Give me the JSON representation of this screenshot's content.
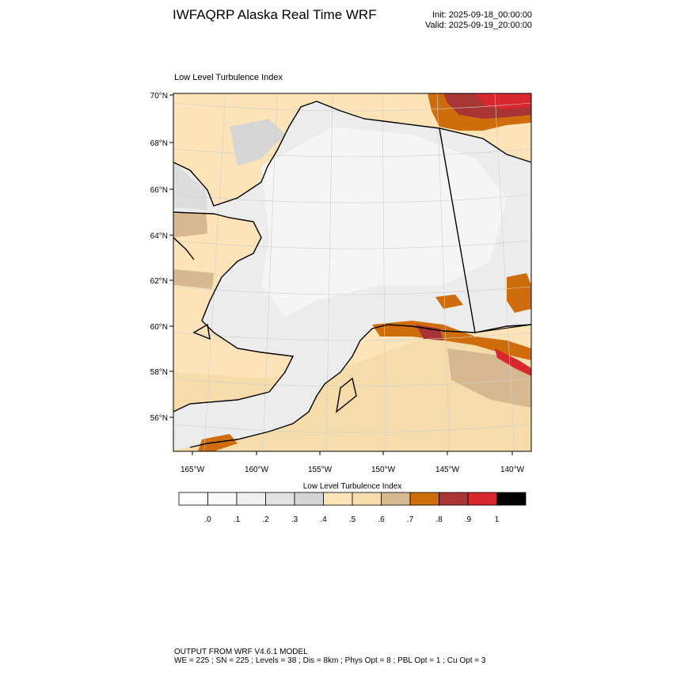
{
  "header": {
    "title": "IWFAQRP Alaska Real Time WRF",
    "init": "Init: 2025-09-18_00:00:00",
    "valid": "Valid: 2025-09-19_20:00:00"
  },
  "map": {
    "subtitle": "Low Level Turbulence Index",
    "lat_labels": [
      "70°N",
      "68°N",
      "66°N",
      "64°N",
      "62°N",
      "60°N",
      "58°N",
      "56°N"
    ],
    "lon_labels": [
      "165°W",
      "160°W",
      "155°W",
      "150°W",
      "145°W",
      "140°W"
    ]
  },
  "colorbar": {
    "title": "Low Level Turbulence Index",
    "colors": [
      "#ffffff",
      "#f9f9f9",
      "#efefef",
      "#e2e2e2",
      "#d4d4d4",
      "#fde3b8",
      "#f5dcaa",
      "#d6b891",
      "#cf6d0c",
      "#a83434",
      "#d9272e",
      "#000000"
    ],
    "tick_labels": [
      ".0",
      ".1",
      ".2",
      ".3",
      ".4",
      ".5",
      ".6",
      ".7",
      ".8",
      ".9",
      "1"
    ]
  },
  "footer": {
    "line1": "OUTPUT FROM WRF V4.6.1 MODEL",
    "line2": "WE = 225 ; SN = 225 ; Levels = 38 ; Dis = 8km ; Phys Opt = 8 ; PBL Opt = 1 ; Cu Opt = 3"
  }
}
